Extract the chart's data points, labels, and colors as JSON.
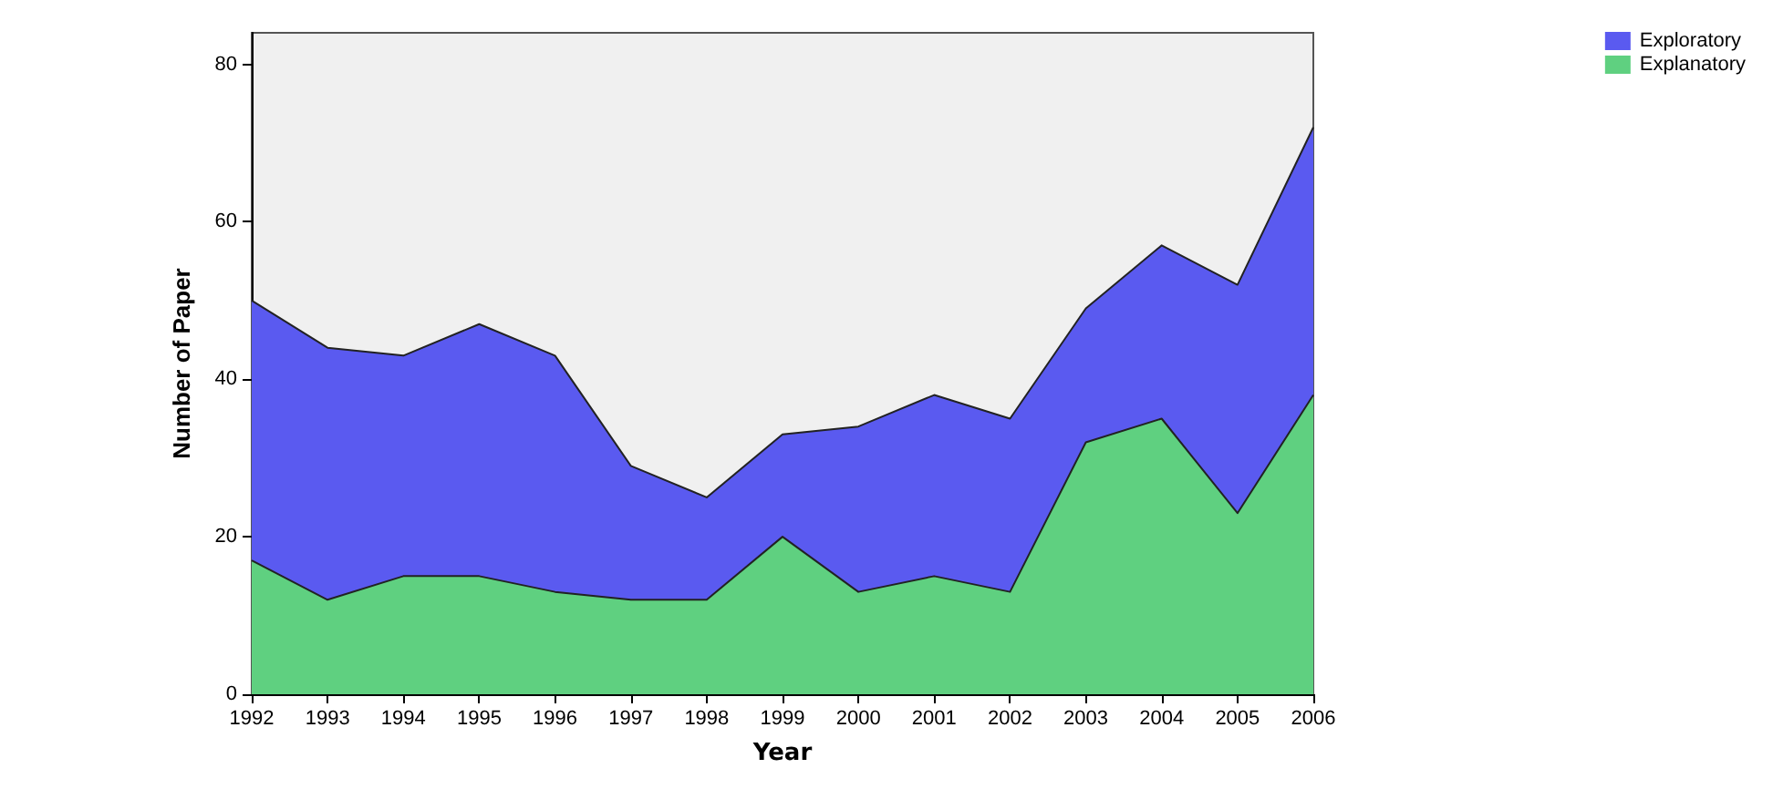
{
  "chart_data": {
    "type": "area",
    "stacked": true,
    "xlabel": "Year",
    "ylabel": "Number of Paper",
    "categories": [
      "1992",
      "1993",
      "1994",
      "1995",
      "1996",
      "1997",
      "1998",
      "1999",
      "2000",
      "2001",
      "2002",
      "2003",
      "2004",
      "2005",
      "2006"
    ],
    "series": [
      {
        "name": "Explanatory",
        "color": "#5fd080",
        "values": [
          17,
          12,
          15,
          15,
          13,
          12,
          12,
          20,
          13,
          15,
          13,
          32,
          35,
          23,
          38
        ]
      },
      {
        "name": "Exploratory",
        "color": "#5a5af0",
        "values": [
          33,
          32,
          28,
          32,
          30,
          17,
          13,
          13,
          21,
          23,
          22,
          17,
          22,
          29,
          34
        ]
      }
    ],
    "ylim": [
      0,
      84
    ],
    "yticks": [
      0,
      20,
      40,
      60,
      80
    ],
    "grid": false,
    "legend": "top right"
  }
}
